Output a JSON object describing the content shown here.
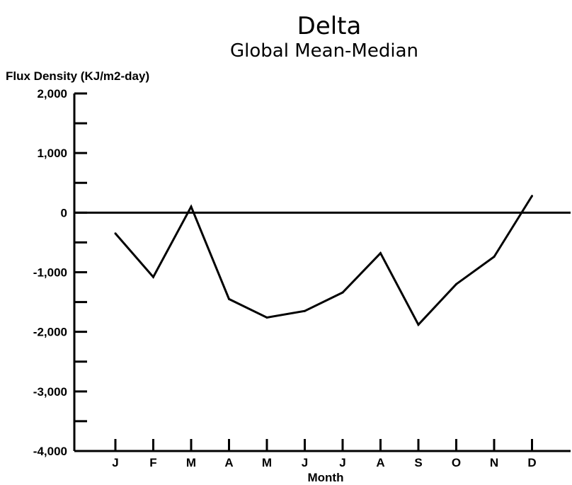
{
  "chart_data": {
    "type": "line",
    "title": "Delta",
    "subtitle": "Global Mean-Median",
    "xlabel": "Month",
    "ylabel": "Flux Density (KJ/m2-day)",
    "categories": [
      "J",
      "F",
      "M",
      "A",
      "M",
      "J",
      "J",
      "A",
      "S",
      "O",
      "N",
      "D"
    ],
    "ylim": [
      -4000,
      2000
    ],
    "yticks": [
      -4000,
      -3000,
      -2000,
      -1000,
      0,
      1000,
      2000
    ],
    "ytick_labels": [
      "-4,000",
      "-3,000",
      "-2,000",
      "-1,000",
      "0",
      "1,000",
      "2,000"
    ],
    "series": [
      {
        "values": [
          -350,
          -1080,
          100,
          -1450,
          -1760,
          -1650,
          -1340,
          -680,
          -1880,
          -1200,
          -740,
          280
        ]
      }
    ],
    "reference_line": 0,
    "grid": false
  }
}
